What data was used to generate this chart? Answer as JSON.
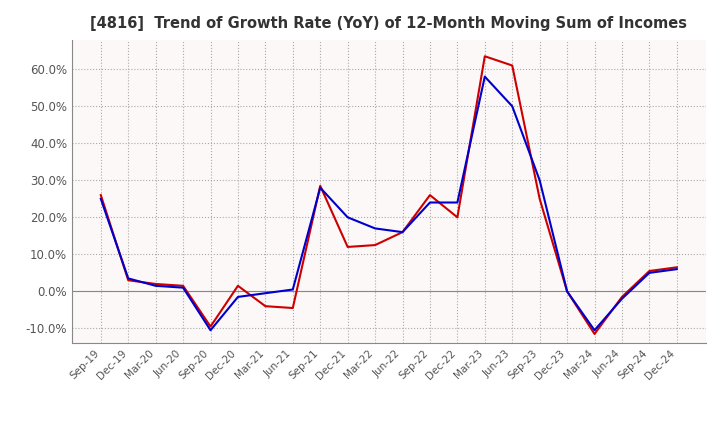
{
  "title": "[4816]  Trend of Growth Rate (YoY) of 12-Month Moving Sum of Incomes",
  "title_color": "#333333",
  "background_color": "#ffffff",
  "plot_background_color": "#fdf8f8",
  "grid_color": "#aaaaaa",
  "x_labels": [
    "Sep-19",
    "Dec-19",
    "Mar-20",
    "Jun-20",
    "Sep-20",
    "Dec-20",
    "Mar-21",
    "Jun-21",
    "Sep-21",
    "Dec-21",
    "Mar-22",
    "Jun-22",
    "Sep-22",
    "Dec-22",
    "Mar-23",
    "Jun-23",
    "Sep-23",
    "Dec-23",
    "Mar-24",
    "Jun-24",
    "Sep-24",
    "Dec-24"
  ],
  "ordinary_income": [
    25.0,
    3.5,
    1.5,
    1.0,
    -10.5,
    -1.5,
    -0.5,
    0.5,
    28.0,
    20.0,
    17.0,
    16.0,
    24.0,
    24.0,
    58.0,
    50.0,
    30.0,
    0.0,
    -10.5,
    -2.0,
    5.0,
    6.0
  ],
  "net_income": [
    26.0,
    3.0,
    2.0,
    1.5,
    -9.5,
    1.5,
    -4.0,
    -4.5,
    28.5,
    12.0,
    12.5,
    16.0,
    26.0,
    20.0,
    63.5,
    61.0,
    25.0,
    0.0,
    -11.5,
    -1.5,
    5.5,
    6.5
  ],
  "ordinary_color": "#0000cc",
  "net_color": "#cc0000",
  "ylim": [
    -14.0,
    68.0
  ],
  "yticks": [
    -10.0,
    0.0,
    10.0,
    20.0,
    30.0,
    40.0,
    50.0,
    60.0
  ]
}
